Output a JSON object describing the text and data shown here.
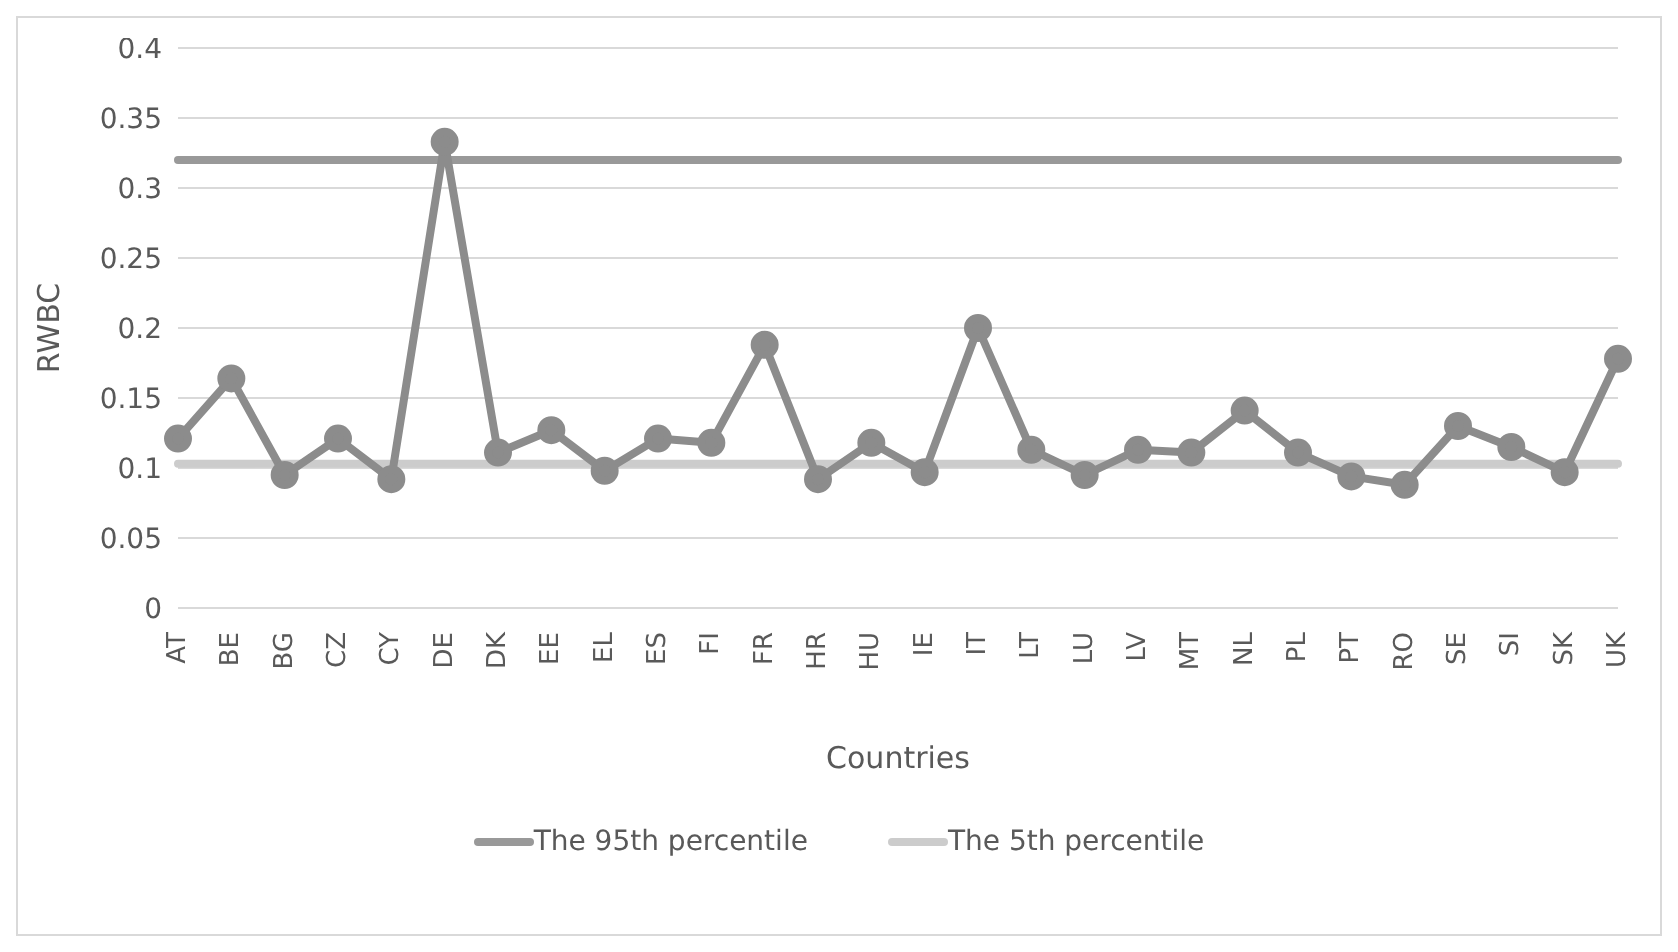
{
  "chart_data": {
    "type": "line",
    "xlabel": "Countries",
    "ylabel": "RWBC",
    "categories": [
      "AT",
      "BE",
      "BG",
      "CZ",
      "CY",
      "DE",
      "DK",
      "EE",
      "EL",
      "ES",
      "FI",
      "FR",
      "HR",
      "HU",
      "IE",
      "IT",
      "LT",
      "LU",
      "LV",
      "MT",
      "NL",
      "PL",
      "PT",
      "RO",
      "SE",
      "SI",
      "SK",
      "UK"
    ],
    "series": [
      {
        "color": "#8c8c8c",
        "marker": "circle",
        "values": [
          0.121,
          0.164,
          0.095,
          0.121,
          0.092,
          0.333,
          0.111,
          0.127,
          0.098,
          0.121,
          0.118,
          0.188,
          0.092,
          0.118,
          0.097,
          0.2,
          0.113,
          0.095,
          0.113,
          0.111,
          0.141,
          0.111,
          0.094,
          0.088,
          0.13,
          0.115,
          0.097,
          0.178
        ]
      },
      {
        "name": "The 95th percentile",
        "color": "#999999",
        "marker": "none",
        "values": [
          0.32,
          0.32,
          0.32,
          0.32,
          0.32,
          0.32,
          0.32,
          0.32,
          0.32,
          0.32,
          0.32,
          0.32,
          0.32,
          0.32,
          0.32,
          0.32,
          0.32,
          0.32,
          0.32,
          0.32,
          0.32,
          0.32,
          0.32,
          0.32,
          0.32,
          0.32,
          0.32,
          0.32
        ]
      },
      {
        "name": "The 5th percentile",
        "color": "#cccccc",
        "marker": "none",
        "values": [
          0.103,
          0.103,
          0.103,
          0.103,
          0.103,
          0.103,
          0.103,
          0.103,
          0.103,
          0.103,
          0.103,
          0.103,
          0.103,
          0.103,
          0.103,
          0.103,
          0.103,
          0.103,
          0.103,
          0.103,
          0.103,
          0.103,
          0.103,
          0.103,
          0.103,
          0.103,
          0.103,
          0.103
        ]
      }
    ],
    "ylim": [
      0,
      0.4
    ],
    "yticks": [
      0,
      0.05,
      0.1,
      0.15,
      0.2,
      0.25,
      0.3,
      0.35,
      0.4
    ],
    "grid": "y",
    "legend": "bottom"
  }
}
